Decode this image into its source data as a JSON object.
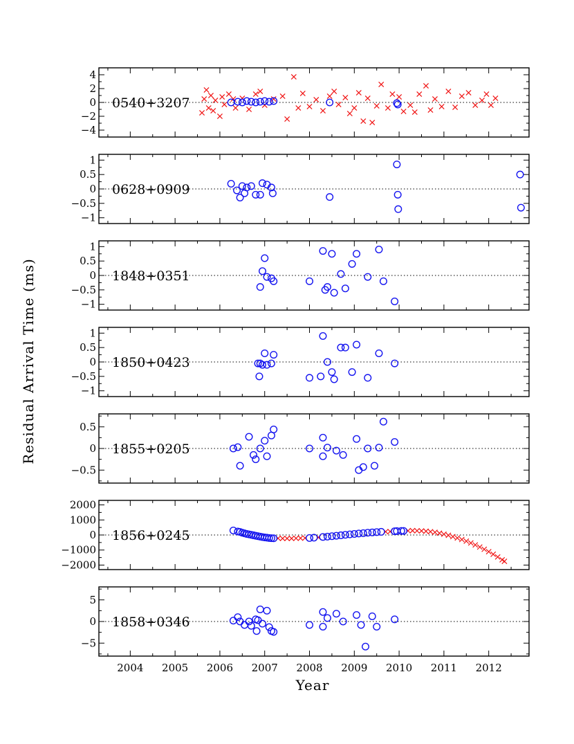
{
  "chart_data": {
    "type": "scatter",
    "ylabel": "Residual Arrival Time (ms)",
    "xlabel": "Year",
    "xlim": [
      2003.3,
      2012.9
    ],
    "xticks": [
      2004,
      2005,
      2006,
      2007,
      2008,
      2009,
      2010,
      2011,
      2012
    ],
    "colors": {
      "circle": "#1414f0",
      "cross": "#f01414"
    },
    "panels": [
      {
        "name": "0540+3207",
        "ylim": [
          -5,
          5
        ],
        "yticks": [
          4,
          2,
          0,
          -2,
          -4
        ],
        "circles": [
          [
            2006.25,
            0
          ],
          [
            2006.4,
            0.1
          ],
          [
            2006.5,
            0
          ],
          [
            2006.6,
            0.2
          ],
          [
            2006.7,
            0.1
          ],
          [
            2006.8,
            0
          ],
          [
            2006.9,
            0.1
          ],
          [
            2007.0,
            0.2
          ],
          [
            2007.1,
            0.1
          ],
          [
            2007.2,
            0.2
          ],
          [
            2008.45,
            0
          ],
          [
            2009.95,
            -0.1
          ],
          [
            2009.97,
            -0.3
          ]
        ],
        "crosses": [
          [
            2005.6,
            -1.5
          ],
          [
            2005.65,
            0.5
          ],
          [
            2005.7,
            1.8
          ],
          [
            2005.75,
            -0.8
          ],
          [
            2005.8,
            1
          ],
          [
            2005.85,
            -1.2
          ],
          [
            2005.9,
            0.3
          ],
          [
            2006.0,
            -2
          ],
          [
            2006.05,
            0.8
          ],
          [
            2006.1,
            -0.3
          ],
          [
            2006.2,
            1.2
          ],
          [
            2006.3,
            0.5
          ],
          [
            2006.35,
            -0.8
          ],
          [
            2006.5,
            0.6
          ],
          [
            2006.65,
            -1
          ],
          [
            2006.8,
            1.2
          ],
          [
            2006.9,
            1.6
          ],
          [
            2007.0,
            -0.4
          ],
          [
            2007.2,
            0.5
          ],
          [
            2007.4,
            0.9
          ],
          [
            2007.5,
            -2.4
          ],
          [
            2007.65,
            3.7
          ],
          [
            2007.75,
            -0.8
          ],
          [
            2007.85,
            1.3
          ],
          [
            2008.0,
            -0.6
          ],
          [
            2008.15,
            0.4
          ],
          [
            2008.3,
            -1.2
          ],
          [
            2008.45,
            0.9
          ],
          [
            2008.55,
            1.6
          ],
          [
            2008.65,
            -0.3
          ],
          [
            2008.8,
            0.7
          ],
          [
            2008.9,
            -1.6
          ],
          [
            2009.0,
            -0.8
          ],
          [
            2009.1,
            1.4
          ],
          [
            2009.2,
            -2.7
          ],
          [
            2009.3,
            0.6
          ],
          [
            2009.4,
            -2.9
          ],
          [
            2009.5,
            -0.5
          ],
          [
            2009.6,
            2.6
          ],
          [
            2009.75,
            -0.8
          ],
          [
            2009.85,
            1.2
          ],
          [
            2010.0,
            0.8
          ],
          [
            2010.1,
            -1.3
          ],
          [
            2010.25,
            -0.4
          ],
          [
            2010.35,
            -1.4
          ],
          [
            2010.45,
            1.2
          ],
          [
            2010.6,
            2.4
          ],
          [
            2010.7,
            -1.1
          ],
          [
            2010.8,
            0.5
          ],
          [
            2010.95,
            -0.6
          ],
          [
            2011.1,
            1.6
          ],
          [
            2011.25,
            -0.7
          ],
          [
            2011.4,
            0.9
          ],
          [
            2011.55,
            1.4
          ],
          [
            2011.7,
            -0.4
          ],
          [
            2011.85,
            0.3
          ],
          [
            2011.95,
            1.2
          ],
          [
            2012.05,
            -0.4
          ],
          [
            2012.15,
            0.6
          ]
        ]
      },
      {
        "name": "0628+0909",
        "ylim": [
          -1.2,
          1.2
        ],
        "yticks": [
          1,
          0.5,
          0,
          -0.5,
          -1
        ],
        "circles": [
          [
            2006.25,
            0.18
          ],
          [
            2006.38,
            -0.05
          ],
          [
            2006.45,
            -0.3
          ],
          [
            2006.5,
            0.1
          ],
          [
            2006.55,
            -0.15
          ],
          [
            2006.6,
            0.05
          ],
          [
            2006.7,
            0.1
          ],
          [
            2006.8,
            -0.2
          ],
          [
            2006.9,
            -0.2
          ],
          [
            2006.95,
            0.2
          ],
          [
            2007.05,
            0.15
          ],
          [
            2007.15,
            0.05
          ],
          [
            2007.18,
            -0.15
          ],
          [
            2008.45,
            -0.28
          ],
          [
            2009.95,
            0.85
          ],
          [
            2009.97,
            -0.2
          ],
          [
            2009.98,
            -0.7
          ],
          [
            2012.7,
            0.5
          ],
          [
            2012.72,
            -0.65
          ]
        ],
        "crosses": []
      },
      {
        "name": "1848+0351",
        "ylim": [
          -1.2,
          1.2
        ],
        "yticks": [
          1,
          0.5,
          0,
          -0.5,
          -1
        ],
        "circles": [
          [
            2006.9,
            -0.4
          ],
          [
            2006.95,
            0.15
          ],
          [
            2007.0,
            0.6
          ],
          [
            2007.05,
            -0.05
          ],
          [
            2007.15,
            -0.1
          ],
          [
            2007.2,
            -0.2
          ],
          [
            2008.0,
            -0.2
          ],
          [
            2008.3,
            0.85
          ],
          [
            2008.35,
            -0.5
          ],
          [
            2008.4,
            -0.4
          ],
          [
            2008.5,
            0.75
          ],
          [
            2008.55,
            -0.6
          ],
          [
            2008.7,
            0.05
          ],
          [
            2008.8,
            -0.45
          ],
          [
            2008.95,
            0.4
          ],
          [
            2009.05,
            0.75
          ],
          [
            2009.3,
            -0.05
          ],
          [
            2009.55,
            0.9
          ],
          [
            2009.65,
            -0.2
          ],
          [
            2009.9,
            -0.9
          ]
        ],
        "crosses": []
      },
      {
        "name": "1850+0423",
        "ylim": [
          -1.2,
          1.2
        ],
        "yticks": [
          1,
          0.5,
          0,
          -0.5,
          -1
        ],
        "circles": [
          [
            2006.85,
            -0.05
          ],
          [
            2006.9,
            -0.05
          ],
          [
            2006.95,
            -0.1
          ],
          [
            2006.88,
            -0.5
          ],
          [
            2007.0,
            0.3
          ],
          [
            2007.05,
            -0.1
          ],
          [
            2007.15,
            -0.05
          ],
          [
            2007.2,
            0.25
          ],
          [
            2008.0,
            -0.55
          ],
          [
            2008.3,
            0.9
          ],
          [
            2008.25,
            -0.5
          ],
          [
            2008.4,
            0
          ],
          [
            2008.5,
            -0.35
          ],
          [
            2008.55,
            -0.6
          ],
          [
            2008.7,
            0.5
          ],
          [
            2008.8,
            0.5
          ],
          [
            2008.95,
            -0.35
          ],
          [
            2009.05,
            0.6
          ],
          [
            2009.3,
            -0.55
          ],
          [
            2009.55,
            0.3
          ],
          [
            2009.9,
            -0.05
          ]
        ],
        "crosses": []
      },
      {
        "name": "1855+0205",
        "ylim": [
          -0.8,
          0.8
        ],
        "yticks": [
          0.5,
          0,
          -0.5
        ],
        "circles": [
          [
            2006.3,
            0
          ],
          [
            2006.4,
            0.03
          ],
          [
            2006.45,
            -0.4
          ],
          [
            2006.65,
            0.27
          ],
          [
            2006.75,
            -0.15
          ],
          [
            2006.8,
            -0.25
          ],
          [
            2006.9,
            0
          ],
          [
            2007.0,
            0.18
          ],
          [
            2007.05,
            -0.18
          ],
          [
            2007.15,
            0.3
          ],
          [
            2007.2,
            0.44
          ],
          [
            2008.0,
            0
          ],
          [
            2008.3,
            0.25
          ],
          [
            2008.3,
            -0.18
          ],
          [
            2008.4,
            0.02
          ],
          [
            2008.6,
            -0.05
          ],
          [
            2008.75,
            -0.15
          ],
          [
            2009.05,
            0.22
          ],
          [
            2009.1,
            -0.5
          ],
          [
            2009.2,
            -0.43
          ],
          [
            2009.3,
            0
          ],
          [
            2009.45,
            -0.4
          ],
          [
            2009.55,
            0.02
          ],
          [
            2009.65,
            0.62
          ],
          [
            2009.9,
            0.15
          ]
        ],
        "crosses": []
      },
      {
        "name": "1856+0245",
        "ylim": [
          -2300,
          2300
        ],
        "yticks": [
          2000,
          1000,
          0,
          -1000,
          -2000
        ],
        "circles": [
          [
            2006.3,
            300
          ],
          [
            2006.4,
            230
          ],
          [
            2006.45,
            200
          ],
          [
            2006.5,
            150
          ],
          [
            2006.55,
            110
          ],
          [
            2006.6,
            70
          ],
          [
            2006.65,
            40
          ],
          [
            2006.7,
            10
          ],
          [
            2006.75,
            -20
          ],
          [
            2006.8,
            -50
          ],
          [
            2006.85,
            -80
          ],
          [
            2006.9,
            -110
          ],
          [
            2006.95,
            -140
          ],
          [
            2007.0,
            -160
          ],
          [
            2007.05,
            -180
          ],
          [
            2007.1,
            -200
          ],
          [
            2007.15,
            -210
          ],
          [
            2007.2,
            -220
          ],
          [
            2008.0,
            -200
          ],
          [
            2008.1,
            -180
          ],
          [
            2008.3,
            -130
          ],
          [
            2008.4,
            -110
          ],
          [
            2008.5,
            -80
          ],
          [
            2008.6,
            -50
          ],
          [
            2008.7,
            -20
          ],
          [
            2008.8,
            10
          ],
          [
            2008.9,
            40
          ],
          [
            2009.0,
            70
          ],
          [
            2009.1,
            100
          ],
          [
            2009.2,
            120
          ],
          [
            2009.3,
            150
          ],
          [
            2009.4,
            170
          ],
          [
            2009.5,
            190
          ],
          [
            2009.6,
            210
          ],
          [
            2009.9,
            250
          ],
          [
            2009.95,
            260
          ],
          [
            2010.05,
            270
          ],
          [
            2010.1,
            270
          ]
        ],
        "crosses": [
          [
            2007.3,
            -220
          ],
          [
            2007.4,
            -230
          ],
          [
            2007.5,
            -230
          ],
          [
            2007.6,
            -230
          ],
          [
            2007.7,
            -220
          ],
          [
            2007.8,
            -210
          ],
          [
            2007.9,
            -200
          ],
          [
            2008.2,
            -160
          ],
          [
            2009.7,
            220
          ],
          [
            2009.8,
            230
          ],
          [
            2010.2,
            280
          ],
          [
            2010.3,
            290
          ],
          [
            2010.4,
            280
          ],
          [
            2010.5,
            270
          ],
          [
            2010.6,
            250
          ],
          [
            2010.7,
            220
          ],
          [
            2010.8,
            180
          ],
          [
            2010.9,
            120
          ],
          [
            2011.0,
            50
          ],
          [
            2011.1,
            -20
          ],
          [
            2011.2,
            -110
          ],
          [
            2011.3,
            -200
          ],
          [
            2011.4,
            -300
          ],
          [
            2011.5,
            -410
          ],
          [
            2011.6,
            -530
          ],
          [
            2011.7,
            -660
          ],
          [
            2011.8,
            -800
          ],
          [
            2011.9,
            -950
          ],
          [
            2012.0,
            -1110
          ],
          [
            2012.1,
            -1280
          ],
          [
            2012.2,
            -1460
          ],
          [
            2012.3,
            -1650
          ],
          [
            2012.35,
            -1750
          ]
        ]
      },
      {
        "name": "1858+0346",
        "ylim": [
          -8,
          8
        ],
        "yticks": [
          5,
          0,
          -5
        ],
        "circles": [
          [
            2006.3,
            0.2
          ],
          [
            2006.4,
            1
          ],
          [
            2006.45,
            0
          ],
          [
            2006.55,
            -0.8
          ],
          [
            2006.65,
            0
          ],
          [
            2006.7,
            -1
          ],
          [
            2006.8,
            0.5
          ],
          [
            2006.82,
            -2.2
          ],
          [
            2006.85,
            0.3
          ],
          [
            2006.9,
            2.8
          ],
          [
            2006.95,
            -0.5
          ],
          [
            2007.05,
            2.5
          ],
          [
            2007.1,
            -1.3
          ],
          [
            2007.15,
            -2.2
          ],
          [
            2007.2,
            -2.4
          ],
          [
            2008.0,
            -0.8
          ],
          [
            2008.3,
            2.2
          ],
          [
            2008.3,
            -1.2
          ],
          [
            2008.4,
            0.8
          ],
          [
            2008.6,
            1.8
          ],
          [
            2008.75,
            0
          ],
          [
            2009.05,
            1.5
          ],
          [
            2009.15,
            -0.8
          ],
          [
            2009.25,
            -5.8
          ],
          [
            2009.4,
            1.2
          ],
          [
            2009.5,
            -1.2
          ],
          [
            2009.9,
            0.5
          ]
        ],
        "crosses": []
      }
    ]
  }
}
